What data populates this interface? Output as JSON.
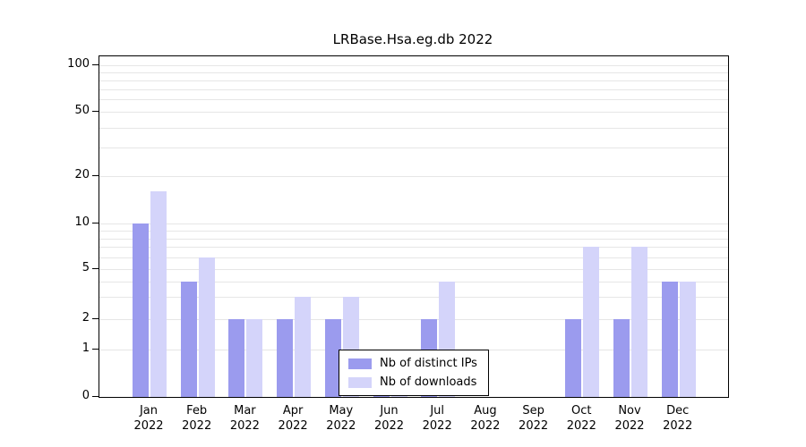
{
  "chart_data": {
    "type": "bar",
    "title": "LRBase.Hsa.eg.db 2022",
    "yscale": "log",
    "ylim": [
      0,
      100
    ],
    "grid": true,
    "legend_position": "bottom-center",
    "y_ticks": [
      0,
      1,
      2,
      5,
      10,
      20,
      50,
      100
    ],
    "gridlines": [
      1,
      2,
      3,
      4,
      5,
      6,
      7,
      8,
      9,
      10,
      20,
      30,
      40,
      50,
      60,
      70,
      80,
      90,
      100
    ],
    "categories": [
      {
        "month": "Jan",
        "year": "2022"
      },
      {
        "month": "Feb",
        "year": "2022"
      },
      {
        "month": "Mar",
        "year": "2022"
      },
      {
        "month": "Apr",
        "year": "2022"
      },
      {
        "month": "May",
        "year": "2022"
      },
      {
        "month": "Jun",
        "year": "2022"
      },
      {
        "month": "Jul",
        "year": "2022"
      },
      {
        "month": "Aug",
        "year": "2022"
      },
      {
        "month": "Sep",
        "year": "2022"
      },
      {
        "month": "Oct",
        "year": "2022"
      },
      {
        "month": "Nov",
        "year": "2022"
      },
      {
        "month": "Dec",
        "year": "2022"
      }
    ],
    "series": [
      {
        "name": "Nb of distinct IPs",
        "color": "#9b9bee",
        "values": [
          10,
          4,
          2,
          2,
          2,
          1,
          2,
          0,
          0,
          2,
          2,
          4
        ]
      },
      {
        "name": "Nb of downloads",
        "color": "#d4d4fa",
        "values": [
          16,
          6,
          2,
          3,
          3,
          1,
          4,
          0,
          0,
          7,
          7,
          4
        ]
      }
    ]
  }
}
